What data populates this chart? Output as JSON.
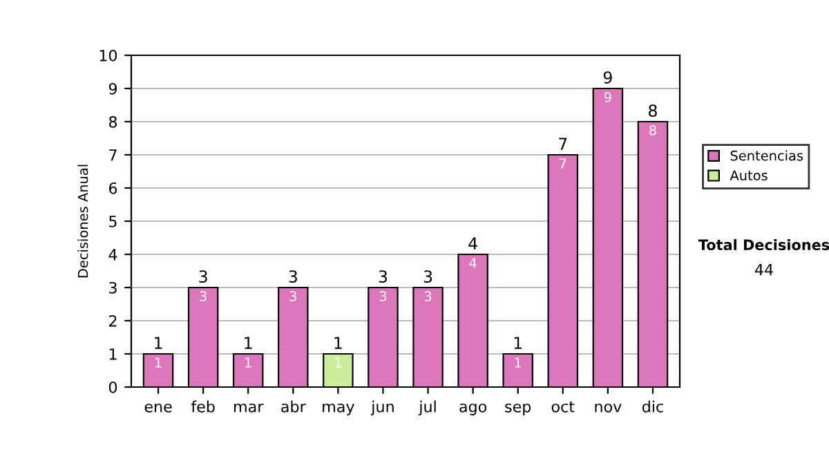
{
  "chart_data": {
    "type": "bar",
    "stacked": true,
    "ylabel": "Decisiones Anual",
    "categories": [
      "ene",
      "feb",
      "mar",
      "abr",
      "may",
      "jun",
      "jul",
      "ago",
      "sep",
      "oct",
      "nov",
      "dic"
    ],
    "series": [
      {
        "name": "Sentencias",
        "color": "#dd77bb",
        "values": [
          1,
          3,
          1,
          3,
          null,
          3,
          3,
          4,
          1,
          7,
          9,
          8
        ]
      },
      {
        "name": "Autos",
        "color": "#ccee99",
        "values": [
          null,
          null,
          null,
          null,
          1,
          null,
          null,
          null,
          null,
          null,
          null,
          null
        ]
      }
    ],
    "totals": [
      "1",
      "3",
      "1",
      "3",
      "1",
      "3",
      "3",
      "4",
      "1",
      "7",
      "9",
      "8"
    ],
    "data_labels": true,
    "ylim": [
      0,
      10
    ],
    "yticks": [
      0,
      1,
      2,
      3,
      4,
      5,
      6,
      7,
      8,
      9,
      10
    ],
    "grid": "y",
    "legend": "right",
    "annotations": [
      "Total Decisiones",
      "44"
    ]
  }
}
